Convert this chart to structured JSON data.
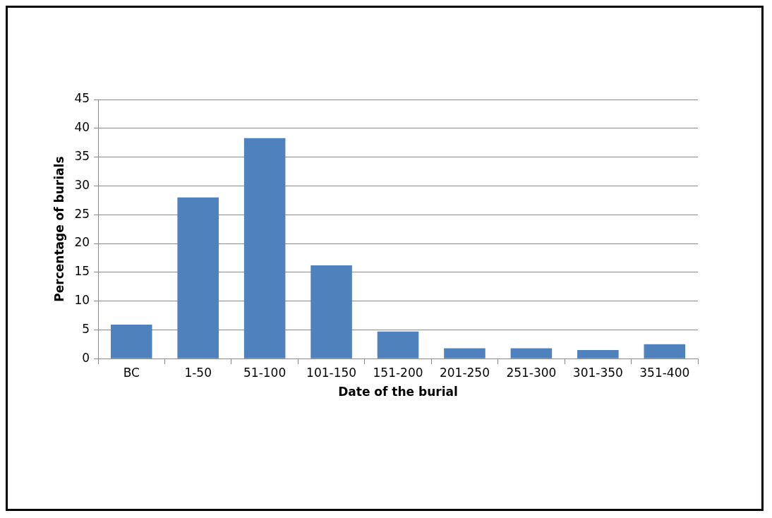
{
  "chart_data": {
    "type": "bar",
    "xlabel": "Date of the burial",
    "ylabel": "Percentage of burials",
    "categories": [
      "BC",
      "1-50",
      "51-100",
      "101-150",
      "151-200",
      "201-250",
      "251-300",
      "301-350",
      "351-400"
    ],
    "values": [
      5.9,
      28,
      38.3,
      16.2,
      4.7,
      1.8,
      1.8,
      1.5,
      2.5
    ],
    "color": "#4f81bd",
    "ylim": [
      0,
      45
    ],
    "yticks": [
      0,
      5,
      10,
      15,
      20,
      25,
      30,
      35,
      40,
      45
    ],
    "grid": "y",
    "legend": false
  }
}
